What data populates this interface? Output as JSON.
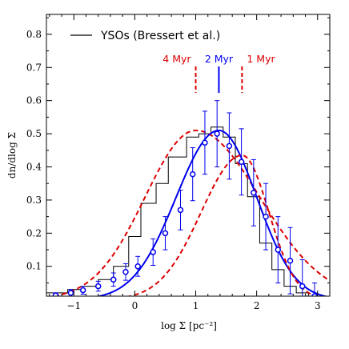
{
  "chart_data": {
    "type": "line",
    "xlabel": "log Σ [pc⁻²]",
    "ylabel": "dn/dlog Σ",
    "xlim": [
      -1.45,
      3.2
    ],
    "ylim": [
      0.01,
      0.86
    ],
    "xticks": [
      -1,
      0,
      1,
      2,
      3
    ],
    "xtick_labels": [
      "−1",
      "0",
      "1",
      "2",
      "3"
    ],
    "yticks": [
      0.1,
      0.2,
      0.3,
      0.4,
      0.5,
      0.6,
      0.7,
      0.8
    ],
    "ytick_labels": [
      "0.1",
      "0.2",
      "0.3",
      "0.4",
      "0.5",
      "0.6",
      "0.7",
      "0.8"
    ],
    "grid": false,
    "legend": {
      "placement": "top-left",
      "entries": [
        {
          "label": "YSOs (Bressert et al.)",
          "color": "#000000"
        }
      ]
    },
    "histogram": {
      "name": "YSOs (Bressert et al.)",
      "color": "#000000",
      "edges": [
        -1.45,
        -1.35,
        -1.1,
        -0.85,
        -0.6,
        -0.35,
        -0.1,
        0.1,
        0.35,
        0.55,
        0.85,
        1.05,
        1.25,
        1.45,
        1.65,
        1.85,
        2.05,
        2.25,
        2.45,
        2.65,
        2.85,
        3.05
      ],
      "values": [
        0.02,
        0.02,
        0.03,
        0.04,
        0.06,
        0.1,
        0.19,
        0.29,
        0.35,
        0.43,
        0.49,
        0.5,
        0.52,
        0.49,
        0.41,
        0.31,
        0.17,
        0.09,
        0.04,
        0.02,
        0.01
      ]
    },
    "data_points": {
      "color": "#0000ee",
      "x": [
        -1.3,
        -1.05,
        -0.85,
        -0.6,
        -0.35,
        -0.15,
        0.05,
        0.3,
        0.5,
        0.75,
        0.95,
        1.15,
        1.35,
        1.55,
        1.75,
        1.95,
        2.15,
        2.35,
        2.55,
        2.75,
        2.95
      ],
      "y": [
        0.012,
        0.02,
        0.028,
        0.04,
        0.06,
        0.083,
        0.1,
        0.143,
        0.2,
        0.27,
        0.378,
        0.473,
        0.5,
        0.463,
        0.415,
        0.322,
        0.25,
        0.15,
        0.117,
        0.04,
        0.01
      ],
      "yerr": [
        0.008,
        0.01,
        0.012,
        0.015,
        0.02,
        0.025,
        0.03,
        0.04,
        0.05,
        0.06,
        0.08,
        0.095,
        0.1,
        0.1,
        0.1,
        0.1,
        0.1,
        0.1,
        0.1,
        0.08,
        0.04
      ]
    },
    "model_curves": [
      {
        "label": "4 Myr",
        "color": "#dd0000",
        "style": "dashed",
        "mode": 1.0,
        "peak": 0.51,
        "sigma_left": 0.83,
        "sigma_right": 1.05
      },
      {
        "label": "2 Myr",
        "color": "#0000ee",
        "style": "solid",
        "mode": 1.38,
        "peak": 0.51,
        "sigma_left": 0.7,
        "sigma_right": 0.62
      },
      {
        "label": "1 Myr",
        "color": "#dd0000",
        "style": "dashed",
        "mode": 1.76,
        "peak": 0.435,
        "sigma_left": 0.67,
        "sigma_right": 0.44
      }
    ],
    "age_markers": [
      {
        "label": "4 Myr",
        "x": 1.0,
        "color": "#dd0000",
        "style": "dashed"
      },
      {
        "label": "2 Myr",
        "x": 1.38,
        "color": "#0000ee",
        "style": "solid"
      },
      {
        "label": "1 Myr",
        "x": 1.76,
        "color": "#dd0000",
        "style": "dashed"
      }
    ]
  }
}
